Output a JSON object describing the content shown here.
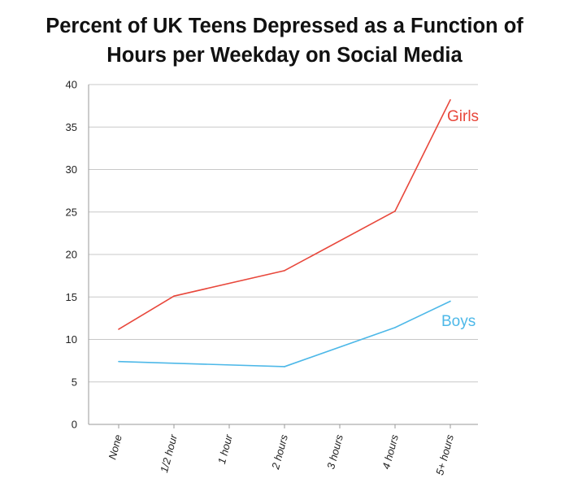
{
  "chart_data": {
    "type": "line",
    "title_lines": [
      "Percent of UK Teens Depressed as a Function of",
      "Hours per Weekday on Social Media"
    ],
    "xlabel": "",
    "ylabel": "",
    "categories": [
      "None",
      "1/2 hour",
      "1 hour",
      "2 hours",
      "3 hours",
      "4 hours",
      "5+ hours"
    ],
    "ylim": [
      0,
      40
    ],
    "yticks": [
      0,
      5,
      10,
      15,
      20,
      25,
      30,
      35,
      40
    ],
    "grid": true,
    "legend": "inline labels at line ends",
    "series": [
      {
        "name": "Girls",
        "color": "#e8473b",
        "points": [
          {
            "x": "None",
            "y": 11.2
          },
          {
            "x": "1/2 hour",
            "y": 15.1
          },
          {
            "x": "2 hours",
            "y": 18.1
          },
          {
            "x": "4 hours",
            "y": 25.1
          },
          {
            "x": "5+ hours",
            "y": 38.2
          }
        ]
      },
      {
        "name": "Boys",
        "color": "#4db8e8",
        "points": [
          {
            "x": "None",
            "y": 7.4
          },
          {
            "x": "2 hours",
            "y": 6.8
          },
          {
            "x": "4 hours",
            "y": 11.4
          },
          {
            "x": "5+ hours",
            "y": 14.5
          }
        ]
      }
    ]
  }
}
